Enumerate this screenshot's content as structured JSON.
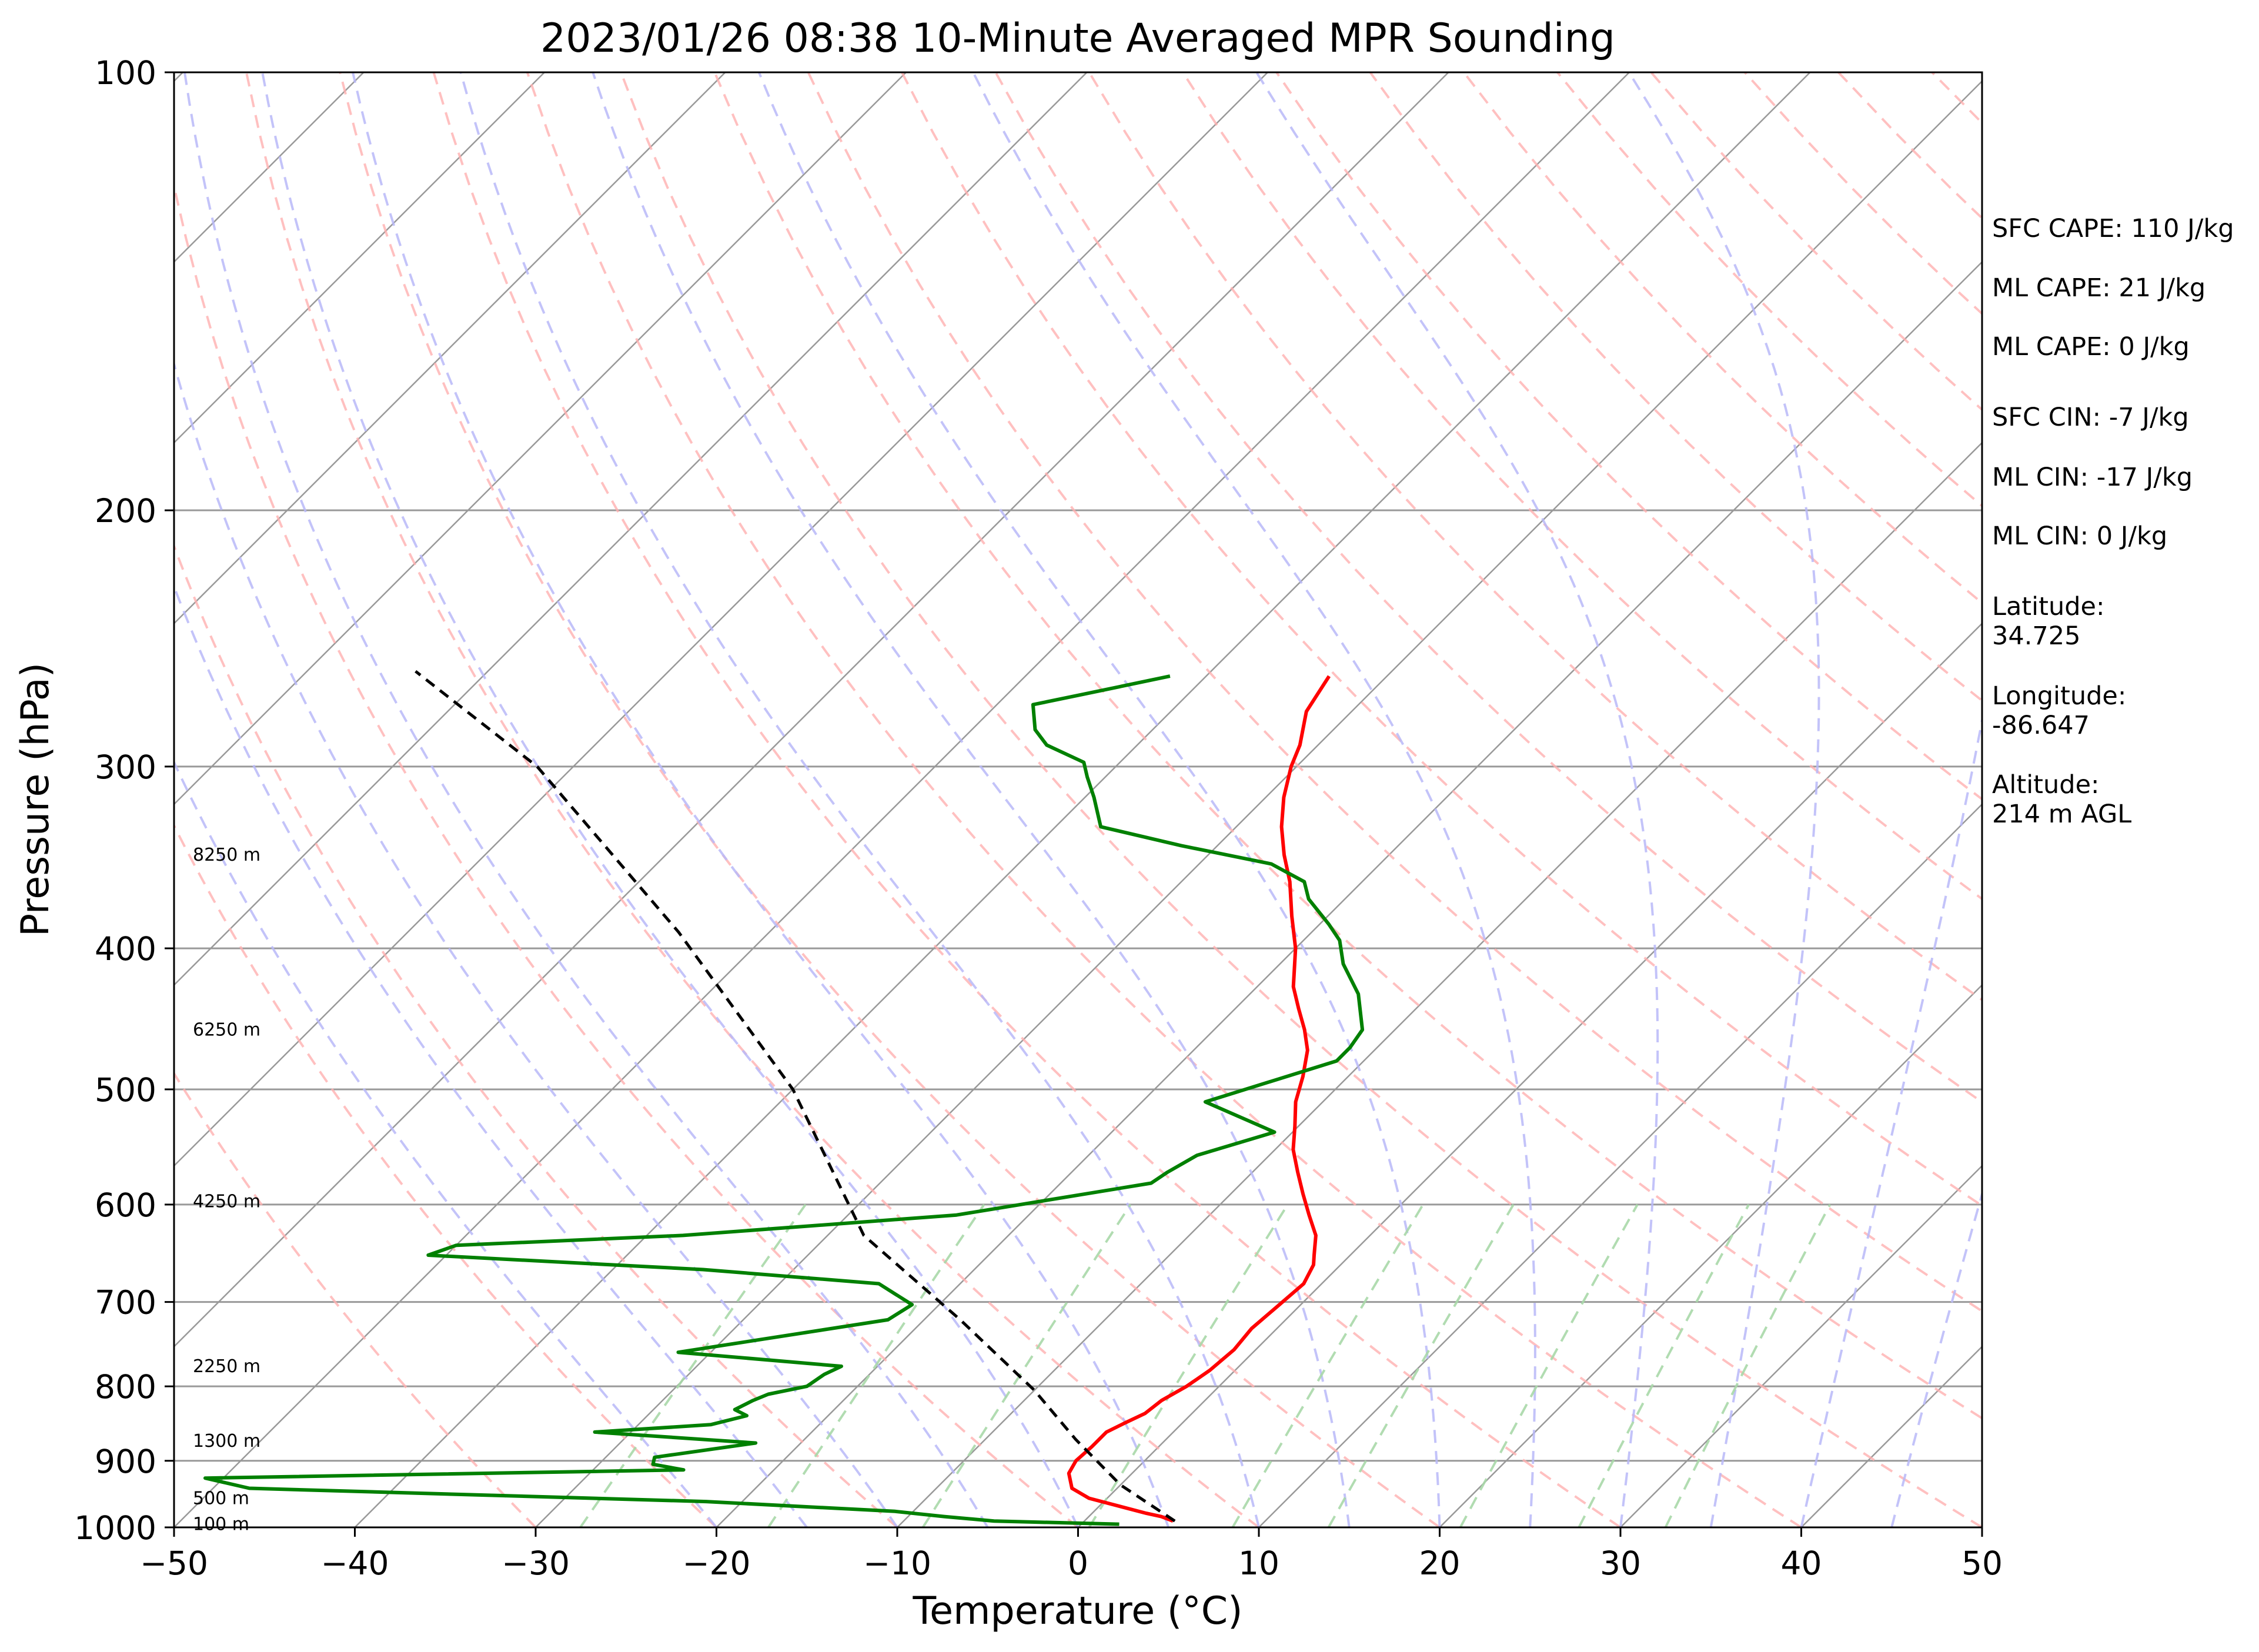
{
  "chart_data": {
    "type": "line",
    "subtype": "skew-T log-P sounding",
    "title": "2023/01/26 08:38 10-Minute Averaged MPR Sounding",
    "xlabel": "Temperature (°C)",
    "ylabel": "Pressure (hPa)",
    "xlim": [
      -50,
      50
    ],
    "ylim": [
      1000,
      100
    ],
    "y_scale": "log",
    "grid": true,
    "x_ticks": [
      "−50",
      "−40",
      "−30",
      "−20",
      "−10",
      "0",
      "10",
      "20",
      "30",
      "40",
      "50"
    ],
    "y_ticks": [
      "100",
      "200",
      "300",
      "400",
      "500",
      "600",
      "700",
      "800",
      "900",
      "1000"
    ],
    "height_labels": [
      "8250 m",
      "6250 m",
      "4250 m",
      "2250 m",
      "1300 m",
      "500 m",
      "100 m"
    ],
    "info": [
      "SFC CAPE: 110 J/kg",
      "ML CAPE: 21 J/kg",
      "ML CAPE: 0 J/kg",
      "SFC CIN: -7 J/kg",
      "ML CIN: -17 J/kg",
      "ML CIN: 0 J/kg",
      "Latitude:",
      "34.725",
      "Longitude:",
      "-86.647",
      "Altitude:",
      "214 m AGL"
    ],
    "colors": {
      "temperature": "#ff0000",
      "dewpoint": "#008000",
      "parcel": "#000000",
      "isotherm": "#999999",
      "dry_adiabat": "#ffb0b0",
      "moist_adiabat": "#b8b8f8",
      "mixing_ratio": "#a8d8a8"
    },
    "series": [
      {
        "role": "temperature",
        "points": [
          [
            4.9,
            990
          ],
          [
            4.0,
            983
          ],
          [
            3.0,
            978
          ],
          [
            -1.0,
            955
          ],
          [
            -2.5,
            940
          ],
          [
            -3.5,
            918
          ],
          [
            -3.8,
            900
          ],
          [
            -3.7,
            880
          ],
          [
            -3.7,
            860
          ],
          [
            -3.2,
            848
          ],
          [
            -2.6,
            835
          ],
          [
            -2.4,
            818
          ],
          [
            -1.8,
            800
          ],
          [
            -1.4,
            780
          ],
          [
            -1.2,
            755
          ],
          [
            -1.4,
            730
          ],
          [
            -1.2,
            705
          ],
          [
            -1.0,
            680
          ],
          [
            -1.5,
            660
          ],
          [
            -2.0,
            650
          ],
          [
            -3.0,
            630
          ],
          [
            -4.5,
            610
          ],
          [
            -6.0,
            590
          ],
          [
            -7.5,
            570
          ],
          [
            -9.0,
            550
          ],
          [
            -10.2,
            530
          ],
          [
            -11.5,
            510
          ],
          [
            -12.5,
            490
          ],
          [
            -13.7,
            470
          ],
          [
            -15.0,
            455
          ],
          [
            -16.5,
            440
          ],
          [
            -18.0,
            425
          ],
          [
            -20.0,
            400
          ],
          [
            -22.0,
            380
          ],
          [
            -24.0,
            360
          ],
          [
            -25.8,
            345
          ],
          [
            -27.5,
            330
          ],
          [
            -29.0,
            315
          ],
          [
            -30.3,
            300
          ],
          [
            -31.0,
            290
          ],
          [
            -32.5,
            275
          ],
          [
            -33.2,
            260
          ]
        ]
      },
      {
        "role": "dewpoint",
        "points": [
          [
            2.1,
            995
          ],
          [
            -5.0,
            990
          ],
          [
            -8.0,
            983
          ],
          [
            -11.0,
            975
          ],
          [
            -22.0,
            960
          ],
          [
            -48.0,
            940
          ],
          [
            -51.0,
            925
          ],
          [
            -25.0,
            913
          ],
          [
            -27.0,
            905
          ],
          [
            -27.3,
            895
          ],
          [
            -22.5,
            875
          ],
          [
            -32.0,
            860
          ],
          [
            -26.0,
            850
          ],
          [
            -24.5,
            838
          ],
          [
            -25.5,
            830
          ],
          [
            -25.0,
            818
          ],
          [
            -24.5,
            810
          ],
          [
            -22.8,
            800
          ],
          [
            -22.5,
            785
          ],
          [
            -22.0,
            775
          ],
          [
            -31.8,
            758
          ],
          [
            -22.0,
            720
          ],
          [
            -21.5,
            703
          ],
          [
            -24.5,
            680
          ],
          [
            -35.0,
            665
          ],
          [
            -51.0,
            650
          ],
          [
            -50.0,
            640
          ],
          [
            -38.0,
            630
          ],
          [
            -24.0,
            610
          ],
          [
            -15.0,
            580
          ],
          [
            -14.7,
            570
          ],
          [
            -14.0,
            555
          ],
          [
            -11.0,
            535
          ],
          [
            -16.5,
            510
          ],
          [
            -11.5,
            478
          ],
          [
            -11.5,
            468
          ],
          [
            -11.8,
            455
          ],
          [
            -14.0,
            430
          ],
          [
            -16.5,
            410
          ],
          [
            -18.0,
            395
          ],
          [
            -19.5,
            385
          ],
          [
            -22.0,
            370
          ],
          [
            -23.2,
            360
          ],
          [
            -26.0,
            350
          ],
          [
            -32.0,
            340
          ],
          [
            -37.5,
            330
          ],
          [
            -39.5,
            315
          ],
          [
            -41.0,
            305
          ],
          [
            -42.0,
            298
          ],
          [
            -45.0,
            290
          ],
          [
            -46.5,
            283
          ],
          [
            -48.0,
            272
          ],
          [
            -46.0,
            268
          ],
          [
            -42.0,
            260
          ]
        ]
      },
      {
        "role": "parcel",
        "points": [
          [
            5.0,
            990
          ],
          [
            0.0,
            935
          ],
          [
            -5.0,
            870
          ],
          [
            -10.0,
            805
          ],
          [
            -18.0,
            720
          ],
          [
            -28.0,
            630
          ],
          [
            -40.0,
            500
          ],
          [
            -55.0,
            390
          ],
          [
            -72.0,
            300
          ],
          [
            -84.0,
            258
          ]
        ]
      }
    ]
  }
}
